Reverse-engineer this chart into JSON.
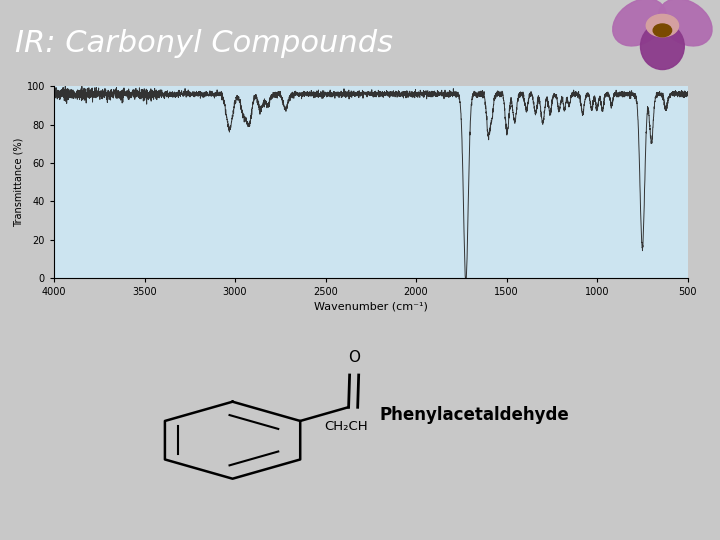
{
  "title": "IR: Carbonyl Compounds",
  "title_color": "#ffffff",
  "header_bg": "#6b7280",
  "slide_bg": "#c8c8c8",
  "chart_bg": "#cce4f0",
  "compound_name": "Phenylacetaldehyde",
  "ylabel": "Transmittance (%)",
  "xlabel": "Wavenumber (cm⁻¹)",
  "ylim": [
    0,
    100
  ],
  "xticks": [
    4000,
    3500,
    3000,
    2500,
    2000,
    1500,
    1000,
    500
  ],
  "yticks": [
    0,
    20,
    40,
    60,
    80,
    100
  ]
}
